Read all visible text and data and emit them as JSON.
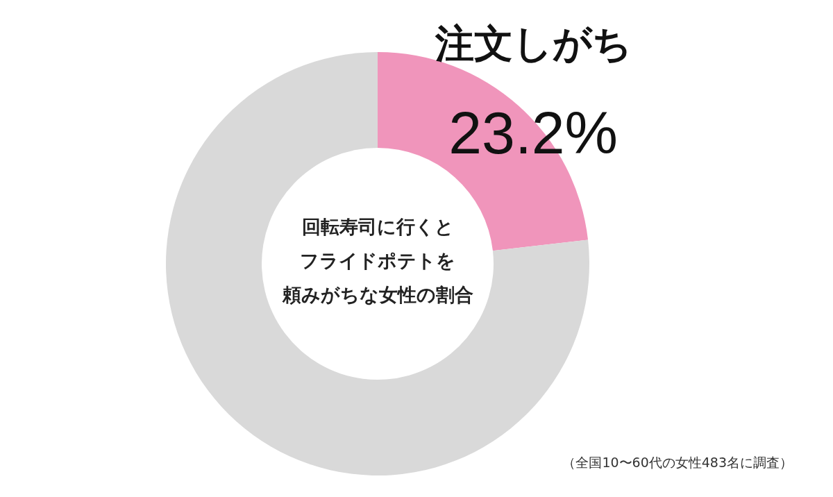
{
  "chart_data": {
    "type": "donut",
    "title": "回転寿司に行くとフライドポテトを頼みがちな女性の割合",
    "categories": [
      "注文しがち",
      null
    ],
    "values": [
      23.2,
      76.8
    ],
    "colors": [
      "#f095bb",
      "#d9d9d9"
    ],
    "value_labels": [
      "23.2%",
      null
    ],
    "annotations": [
      "（全国10〜60代の女性483名に調査）"
    ]
  }
}
